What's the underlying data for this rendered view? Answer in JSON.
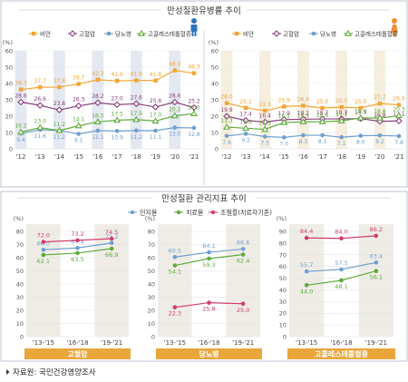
{
  "section1_title": "만성질환유병률 추이",
  "section2_title": "만성질환 관리지표 추이",
  "source_note": "자료원: 국민건강영양조사",
  "colors": {
    "obesity": "#f2a533",
    "hypertension": "#8a3f7d",
    "diabetes": "#6e9fd0",
    "cholesterol": "#5faa3c",
    "awareness": "#6e9fd0",
    "treatment": "#5faa3c",
    "control": "#d23c6e",
    "band_male": "#e4e8f1",
    "band_female": "#f6efe0",
    "band_mgmt": "#efece6",
    "footer_bar": "#e9a63b"
  },
  "icons": {
    "male": "male-person-icon",
    "female": "female-person-icon"
  },
  "chart_data": [
    {
      "type": "line",
      "panel": "male",
      "unit": "(%)",
      "categories": [
        "'12",
        "'13",
        "'14",
        "'15",
        "'16",
        "'17",
        "'18",
        "'19",
        "'20",
        "'21"
      ],
      "ylim": [
        0,
        60
      ],
      "yticks": [
        0,
        10,
        20,
        30,
        40,
        50,
        60
      ],
      "legend": [
        "비만",
        "고혈압",
        "당뇨병",
        "고콜레스테롤혈증"
      ],
      "series": [
        {
          "name": "비만",
          "key": "obesity",
          "values": [
            36.3,
            37.7,
            37.8,
            39.7,
            42.3,
            41.6,
            41.9,
            41.8,
            48.0,
            46.3
          ],
          "labels": [
            "36.3",
            "37.7",
            "37.8",
            "39.7",
            "42.3",
            "41.6",
            "41.9",
            "41.8",
            "48.0",
            "46.3"
          ]
        },
        {
          "name": "고혈압",
          "key": "hypertension",
          "values": [
            28.6,
            26.6,
            23.8,
            26.3,
            28.2,
            27.0,
            27.6,
            25.6,
            28.6,
            25.2
          ],
          "labels": [
            "28.6",
            "26.6",
            "23.8",
            "26.3",
            "28.2",
            "27.0",
            "27.6",
            "25.6",
            "28.6",
            "25.2"
          ]
        },
        {
          "name": "당뇨병",
          "key": "diabetes",
          "values": [
            9.4,
            11.6,
            11.2,
            9.1,
            11.1,
            10.9,
            11.2,
            11.1,
            13.0,
            12.8
          ],
          "labels": [
            "9.4",
            "11.6",
            "11.2",
            "9.1",
            "11.1",
            "10.9",
            "11.2",
            "11.1",
            "13.0",
            "12.8"
          ]
        },
        {
          "name": "고콜레스테롤혈증",
          "key": "cholesterol",
          "values": [
            10.2,
            13.0,
            11.2,
            14.1,
            16.5,
            17.5,
            17.9,
            17.0,
            20.2,
            21.5
          ],
          "labels": [
            "10.2",
            "13.0",
            "11.2",
            "14.1",
            "16.5",
            "17.5",
            "17.9",
            "17.0",
            "20.2",
            "21.5"
          ]
        }
      ]
    },
    {
      "type": "line",
      "panel": "female",
      "unit": "(%)",
      "categories": [
        "'12",
        "'13",
        "'14",
        "'15",
        "'16",
        "'17",
        "'18",
        "'19",
        "'20",
        "'21"
      ],
      "ylim": [
        0,
        60
      ],
      "yticks": [
        0,
        10,
        20,
        30,
        40,
        50,
        60
      ],
      "legend": [
        "비만",
        "고혈압",
        "당뇨병",
        "고콜레스테롤혈증"
      ],
      "series": [
        {
          "name": "비만",
          "key": "obesity",
          "values": [
            28.0,
            25.1,
            23.3,
            25.9,
            26.4,
            25.0,
            25.5,
            25.0,
            27.7,
            26.9
          ],
          "labels": [
            "28.0",
            "25.1",
            "23.3",
            "25.9",
            "26.4",
            "25.0",
            "25.5",
            "25.0",
            "27.7",
            "26.9"
          ]
        },
        {
          "name": "고혈압",
          "key": "hypertension",
          "values": [
            19.9,
            17.4,
            16.4,
            17.9,
            18.1,
            18.3,
            18.3,
            18.5,
            16.8,
            17.1
          ],
          "labels": [
            "19.9",
            "17.4",
            "16.4",
            "17.9",
            "18.1",
            "18.3",
            "18.3",
            "18.5",
            "16.8",
            "17.1"
          ]
        },
        {
          "name": "당뇨병",
          "key": "diabetes",
          "values": [
            7.9,
            9.2,
            7.5,
            7.0,
            8.3,
            8.3,
            7.1,
            8.0,
            8.2,
            7.8
          ],
          "labels": [
            "7.9",
            "9.2",
            "7.5",
            "7.0",
            "8.3",
            "8.3",
            "7.1",
            "8.0",
            "8.2",
            "7.8"
          ]
        },
        {
          "name": "고콜레스테롤혈증",
          "key": "cholesterol",
          "values": [
            13.3,
            12.6,
            11.9,
            16.1,
            16.5,
            16.6,
            17.1,
            18.9,
            18.8,
            20.3
          ],
          "labels": [
            "13.3",
            "12.6",
            "11.9",
            "16.1",
            "16.5",
            "16.6",
            "17.1",
            "18.9",
            "18.8",
            "20.3"
          ]
        }
      ]
    },
    {
      "type": "line",
      "panel": "mgmt",
      "title": "고혈압",
      "unit": "(%)",
      "categories": [
        "'13-'15",
        "'16-'18",
        "'19-'21"
      ],
      "ylim": [
        0,
        80
      ],
      "yticks": [
        0,
        10,
        20,
        30,
        40,
        50,
        60,
        70,
        80
      ],
      "series": [
        {
          "name": "인지율",
          "key": "awareness",
          "values": [
            66.0,
            67.4,
            71.2
          ],
          "labels": [
            "66.0",
            "67.4",
            "71.2"
          ]
        },
        {
          "name": "치료율",
          "key": "treatment",
          "values": [
            62.1,
            63.5,
            66.9
          ],
          "labels": [
            "62.1",
            "63.5",
            "66.9"
          ]
        },
        {
          "name": "조절률(치료자기준)",
          "key": "control",
          "values": [
            72.0,
            73.2,
            74.5
          ],
          "labels": [
            "72.0",
            "73.2",
            "74.5"
          ]
        }
      ]
    },
    {
      "type": "line",
      "panel": "mgmt",
      "title": "당뇨병",
      "unit": "(%)",
      "categories": [
        "'13-'15",
        "'16-'18",
        "'19-'21"
      ],
      "ylim": [
        0,
        80
      ],
      "yticks": [
        0,
        10,
        20,
        30,
        40,
        50,
        60,
        70,
        80
      ],
      "series": [
        {
          "name": "인지율",
          "key": "awareness",
          "values": [
            60.5,
            64.1,
            66.6
          ],
          "labels": [
            "60.5",
            "64.1",
            "66.6"
          ]
        },
        {
          "name": "치료율",
          "key": "treatment",
          "values": [
            54.1,
            59.3,
            62.4
          ],
          "labels": [
            "54.1",
            "59.3",
            "62.4"
          ]
        },
        {
          "name": "조절률(치료자기준)",
          "key": "control",
          "values": [
            22.3,
            25.8,
            25.0
          ],
          "labels": [
            "22.3",
            "25.8",
            "25.0"
          ]
        }
      ]
    },
    {
      "type": "line",
      "panel": "mgmt",
      "title": "고콜레스테롤혈증",
      "unit": "(%)",
      "categories": [
        "'13-'15",
        "'16-'18",
        "'19-'21"
      ],
      "ylim": [
        0,
        90
      ],
      "yticks": [
        0,
        10,
        20,
        30,
        40,
        50,
        60,
        70,
        80,
        90
      ],
      "series": [
        {
          "name": "인지율",
          "key": "awareness",
          "values": [
            55.7,
            57.5,
            63.4
          ],
          "labels": [
            "55.7",
            "57.5",
            "63.4"
          ]
        },
        {
          "name": "치료율",
          "key": "treatment",
          "values": [
            44.0,
            48.1,
            56.1
          ],
          "labels": [
            "44.0",
            "48.1",
            "56.1"
          ]
        },
        {
          "name": "조절률(치료자기준)",
          "key": "control",
          "values": [
            84.4,
            84.0,
            86.2
          ],
          "labels": [
            "84.4",
            "84.0",
            "86.2"
          ]
        }
      ]
    }
  ],
  "mgmt_legend": [
    "인지율",
    "치료율",
    "조절률(치료자기준)"
  ]
}
